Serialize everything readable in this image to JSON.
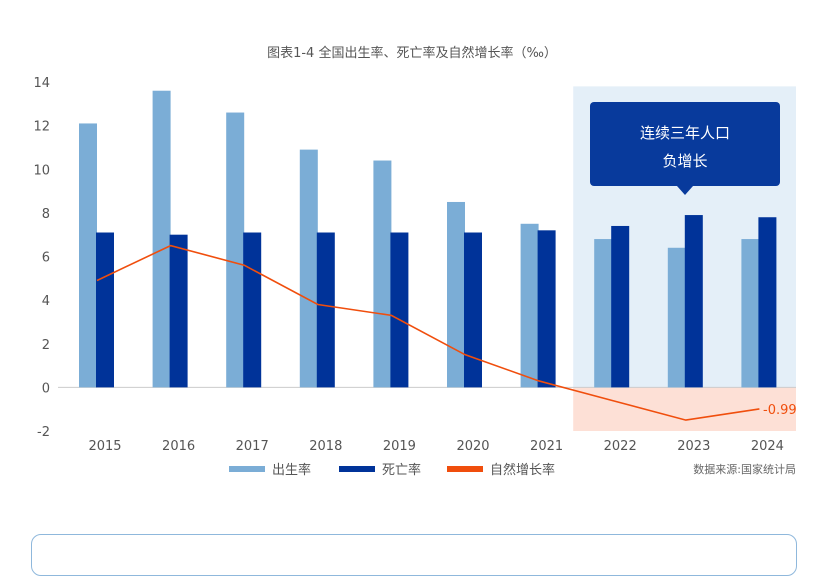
{
  "chart_data": {
    "type": "bar",
    "title": "图表1-4 全国出生率、死亡率及自然增长率（‰）",
    "categories": [
      "2015",
      "2016",
      "2017",
      "2018",
      "2019",
      "2020",
      "2021",
      "2022",
      "2023",
      "2024"
    ],
    "ylim": [
      -2,
      14
    ],
    "yticks": [
      -2,
      0,
      2,
      4,
      6,
      8,
      10,
      12,
      14
    ],
    "series": [
      {
        "name": "出生率",
        "type": "bar",
        "color": "#7badd6",
        "values": [
          12.1,
          13.6,
          12.6,
          10.9,
          10.4,
          8.5,
          7.5,
          6.8,
          6.4,
          6.8
        ]
      },
      {
        "name": "死亡率",
        "type": "bar",
        "color": "#003399",
        "values": [
          7.1,
          7.0,
          7.1,
          7.1,
          7.1,
          7.1,
          7.2,
          7.4,
          7.9,
          7.8
        ]
      },
      {
        "name": "自然增长率",
        "type": "line",
        "color": "#f04e0d",
        "values": [
          4.9,
          6.5,
          5.6,
          3.8,
          3.3,
          1.5,
          0.3,
          -0.6,
          -1.5,
          -0.99
        ]
      }
    ],
    "highlight_categories": [
      "2022",
      "2023",
      "2024"
    ],
    "highlight_label": "-0.99",
    "callout": {
      "line1": "连续三年人口",
      "line2": "负增长"
    },
    "source": "数据来源:国家统计局",
    "colors": {
      "highlight_bg": "#e4eff8",
      "negative_bg": "#fde0d6",
      "callout_bg": "#083a9c",
      "axis_text": "#555555",
      "label_text": "#f04e0d"
    }
  }
}
